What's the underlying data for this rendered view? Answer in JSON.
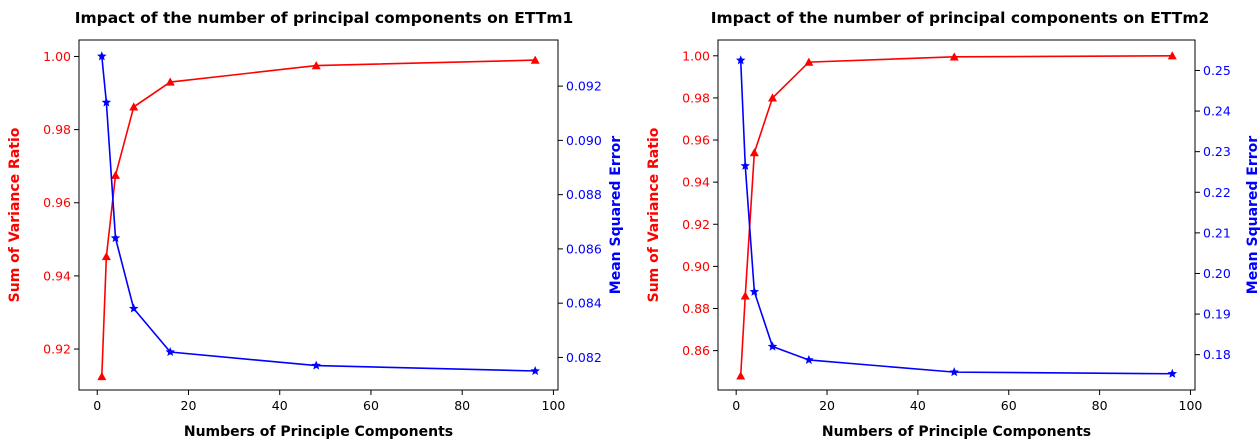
{
  "colors": {
    "left_axis": "#ff0000",
    "right_axis": "#0000ff",
    "frame": "#000000"
  },
  "chart_data": [
    {
      "type": "line",
      "title": "Impact of the number of principal components on ETTm1",
      "xlabel": "Numbers of Principle Components",
      "xlim": [
        -4,
        101
      ],
      "xticks": [
        0,
        20,
        40,
        60,
        80,
        100
      ],
      "x": [
        1,
        2,
        4,
        8,
        16,
        48,
        96
      ],
      "y_left": {
        "label": "Sum of Variance Ratio",
        "lim": [
          0.9088,
          1.0045
        ],
        "ticks": [
          "0.92",
          "0.94",
          "0.96",
          "0.98",
          "1.00"
        ],
        "tick_values": [
          0.92,
          0.94,
          0.96,
          0.98,
          1.0
        ],
        "color": "#ff0000",
        "marker": "triangle",
        "values": [
          0.9125,
          0.9453,
          0.9675,
          0.9862,
          0.993,
          0.9975,
          0.999
        ]
      },
      "y_right": {
        "label": "Mean Squared Error",
        "lim": [
          0.0808,
          0.0937
        ],
        "ticks": [
          "0.082",
          "0.084",
          "0.086",
          "0.088",
          "0.090",
          "0.092"
        ],
        "tick_values": [
          0.082,
          0.084,
          0.086,
          0.088,
          0.09,
          0.092
        ],
        "color": "#0000ff",
        "marker": "star",
        "values": [
          0.0931,
          0.0914,
          0.0864,
          0.0838,
          0.0822,
          0.0817,
          0.0815
        ]
      }
    },
    {
      "type": "line",
      "title": "Impact of the number of principal components on ETTm2",
      "xlabel": "Numbers of Principle Components",
      "xlim": [
        -4,
        101
      ],
      "xticks": [
        0,
        20,
        40,
        60,
        80,
        100
      ],
      "x": [
        1,
        2,
        4,
        8,
        16,
        48,
        96
      ],
      "y_left": {
        "label": "Sum of Variance Ratio",
        "lim": [
          0.8413,
          1.0075
        ],
        "ticks": [
          "0.86",
          "0.88",
          "0.90",
          "0.92",
          "0.94",
          "0.96",
          "0.98",
          "1.00"
        ],
        "tick_values": [
          0.86,
          0.88,
          0.9,
          0.92,
          0.94,
          0.96,
          0.98,
          1.0
        ],
        "color": "#ff0000",
        "marker": "triangle",
        "values": [
          0.848,
          0.886,
          0.954,
          0.98,
          0.997,
          0.9995,
          1.0
        ]
      },
      "y_right": {
        "label": "Mean Squared Error",
        "lim": [
          0.1713,
          0.2575
        ],
        "ticks": [
          "0.18",
          "0.19",
          "0.20",
          "0.21",
          "0.22",
          "0.23",
          "0.24",
          "0.25"
        ],
        "tick_values": [
          0.18,
          0.19,
          0.2,
          0.21,
          0.22,
          0.23,
          0.24,
          0.25
        ],
        "color": "#0000ff",
        "marker": "star",
        "values": [
          0.2525,
          0.2265,
          0.1955,
          0.182,
          0.1787,
          0.1757,
          0.1753
        ]
      }
    }
  ]
}
